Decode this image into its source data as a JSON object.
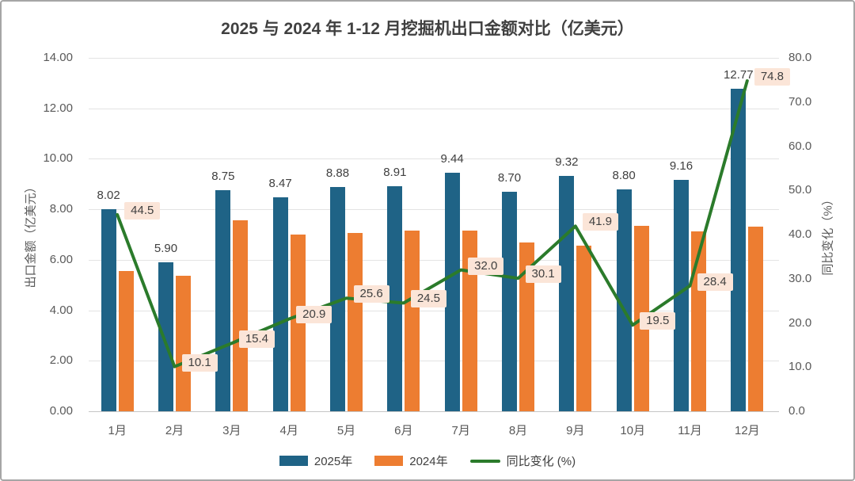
{
  "chart_data": {
    "type": "combo-bar-line",
    "title": "2025 与 2024 年 1-12 月挖掘机出口金额对比（亿美元）",
    "categories": [
      "1月",
      "2月",
      "3月",
      "4月",
      "5月",
      "6月",
      "7月",
      "8月",
      "9月",
      "10月",
      "11月",
      "12月"
    ],
    "series": [
      {
        "name": "2025年",
        "type": "bar",
        "axis": "left",
        "color": "#1f6386",
        "values": [
          8.02,
          5.9,
          8.75,
          8.47,
          8.88,
          8.91,
          9.44,
          8.7,
          9.32,
          8.8,
          9.16,
          12.77
        ],
        "data_labels": true
      },
      {
        "name": "2024年",
        "type": "bar",
        "axis": "left",
        "color": "#ed7d31",
        "values": [
          5.55,
          5.36,
          7.58,
          7.01,
          7.07,
          7.16,
          7.15,
          6.69,
          6.57,
          7.36,
          7.13,
          7.31
        ],
        "data_labels": false,
        "values_estimated": true
      },
      {
        "name": "同比变化 (%)",
        "type": "line",
        "axis": "right",
        "color": "#2b7b2b",
        "values": [
          44.5,
          10.1,
          15.4,
          20.9,
          25.6,
          24.5,
          32.0,
          30.1,
          41.9,
          19.5,
          28.4,
          74.8
        ],
        "data_labels": true,
        "label_background": "#fbe5d8"
      }
    ],
    "left_axis": {
      "title": "出口金额（亿美元）",
      "min": 0,
      "max": 14,
      "step": 2,
      "tick_labels": [
        "14.00",
        "12.00",
        "10.00",
        "8.00",
        "6.00",
        "4.00",
        "2.00",
        "0.00"
      ]
    },
    "right_axis": {
      "title": "同比变化（%）",
      "min": 0,
      "max": 80,
      "step": 10,
      "tick_labels": [
        "80.0",
        "70.0",
        "60.0",
        "50.0",
        "40.0",
        "30.0",
        "20.0",
        "10.0",
        "0.0"
      ]
    },
    "grid": "horizontal",
    "legend": {
      "position": "bottom",
      "items": [
        {
          "label": "2025年",
          "marker": "bar",
          "color": "#1f6386"
        },
        {
          "label": "2024年",
          "marker": "bar",
          "color": "#ed7d31"
        },
        {
          "label": "同比变化 (%)",
          "marker": "line",
          "color": "#2b7b2b"
        }
      ]
    },
    "colors": {
      "gridline": "#e3e3e3",
      "baseline": "#c6c6c6",
      "tick_text": "#595959",
      "data_label_text": "#404040",
      "title_text": "#404040",
      "frame_border": "#a6a6a6",
      "background": "#ffffff"
    }
  }
}
